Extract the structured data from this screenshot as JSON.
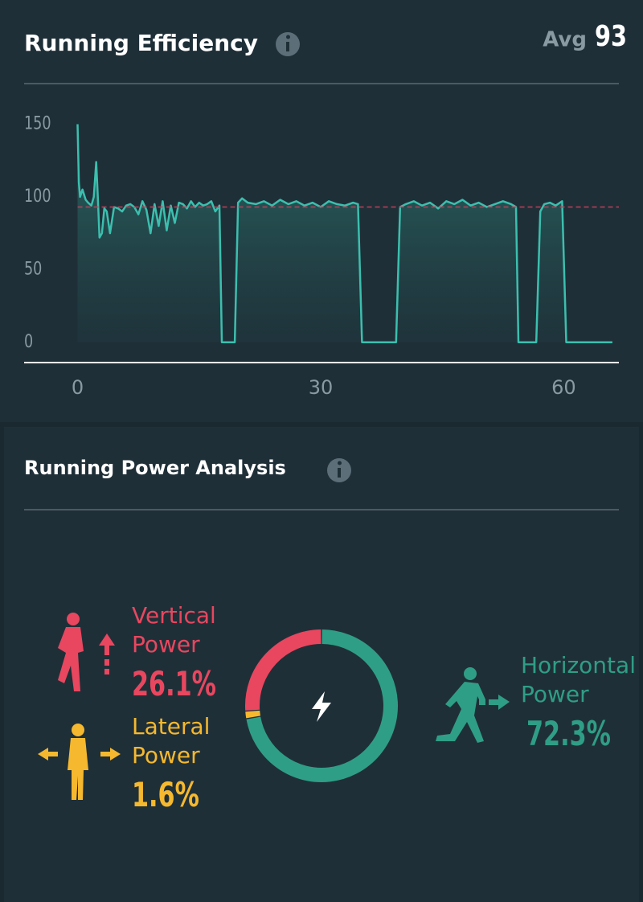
{
  "chart_data": [
    {
      "type": "line",
      "title": "Running Efficiency",
      "avg_label": "Avg",
      "average": 93,
      "color": "#3bbfae",
      "average_color": "#c0405a",
      "x": [
        0,
        0.15,
        0.3,
        0.6,
        1,
        1.3,
        1.7,
        2,
        2.3,
        2.5,
        2.7,
        3,
        3.3,
        3.6,
        4,
        4.5,
        5,
        5.5,
        6,
        6.5,
        7,
        7.5,
        8,
        8.5,
        9,
        9.5,
        10,
        10.5,
        11,
        11.5,
        12,
        12.5,
        13,
        13.5,
        14,
        14.5,
        15,
        15.5,
        16,
        16.5,
        17,
        17.5,
        17.8,
        19.4,
        19.8,
        20.3,
        21,
        22,
        23,
        24,
        25,
        26,
        27,
        28,
        29,
        30,
        31,
        32,
        33,
        34,
        34.6,
        35.1,
        39.3,
        39.8,
        40.5,
        41.5,
        42.5,
        43.5,
        44.5,
        45.5,
        46.5,
        47.5,
        48.5,
        49.5,
        50.5,
        51.5,
        52.5,
        53.5,
        54.1,
        54.4,
        56.6,
        57.1,
        57.6,
        58.3,
        59,
        59.8,
        60.3,
        66
      ],
      "values": [
        150,
        110,
        100,
        105,
        98,
        96,
        94,
        100,
        124,
        100,
        72,
        75,
        92,
        90,
        75,
        93,
        92,
        90,
        94,
        95,
        93,
        88,
        97,
        91,
        75,
        95,
        80,
        97,
        77,
        94,
        82,
        96,
        95,
        92,
        97,
        93,
        96,
        94,
        95,
        97,
        90,
        94,
        0,
        0,
        96,
        99,
        96,
        95,
        97,
        94,
        98,
        95,
        97,
        94,
        96,
        93,
        97,
        95,
        94,
        96,
        95,
        0,
        0,
        93,
        95,
        97,
        94,
        96,
        92,
        97,
        95,
        98,
        94,
        96,
        93,
        95,
        97,
        95,
        93,
        0,
        0,
        90,
        95,
        96,
        94,
        97,
        0,
        0
      ],
      "xlim": [
        -6.6,
        66.8
      ],
      "ylim": [
        -14,
        158
      ],
      "xticks": [
        0,
        30,
        60
      ],
      "yticks": [
        0,
        50,
        100,
        150
      ]
    },
    {
      "type": "donut",
      "title": "Running Power Analysis",
      "categories": [
        "Vertical Power",
        "Lateral Power",
        "Horizontal Power"
      ],
      "values": [
        26.1,
        1.6,
        72.3
      ],
      "value_labels": [
        "26.1%",
        "1.6%",
        "72.3%"
      ],
      "colors": [
        "#e8475f",
        "#f5b82e",
        "#2f9e86"
      ]
    }
  ]
}
